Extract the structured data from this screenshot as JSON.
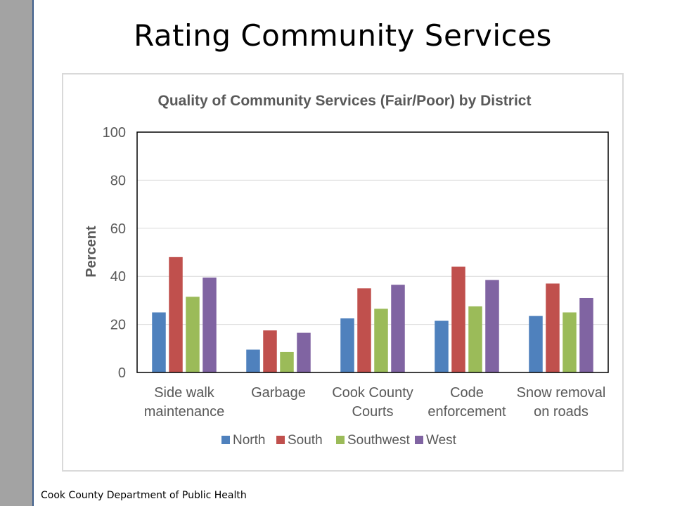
{
  "slide": {
    "title": "Rating Community Services",
    "footer": "Cook County Department of Public Health"
  },
  "colors": {
    "North": "#4f81bd",
    "South": "#c0504d",
    "Southwest": "#9bbb59",
    "West": "#8064a2",
    "left_bar": "#a3a3a3"
  },
  "chart_data": {
    "type": "bar",
    "title": "Quality of Community Services (Fair/Poor) by District",
    "xlabel": "",
    "ylabel": "Percent",
    "ylim": [
      0,
      100
    ],
    "yticks": [
      0,
      20,
      40,
      60,
      80,
      100
    ],
    "grid": true,
    "legend": "bottom",
    "categories": [
      [
        "Side walk",
        "maintenance"
      ],
      [
        "Garbage"
      ],
      [
        "Cook County",
        "Courts"
      ],
      [
        "Code",
        "enforcement"
      ],
      [
        "Snow removal",
        "on roads"
      ]
    ],
    "series": [
      {
        "name": "North",
        "values": [
          25,
          9.5,
          22.5,
          21.5,
          23.5
        ]
      },
      {
        "name": "South",
        "values": [
          48,
          17.5,
          35,
          44,
          37
        ]
      },
      {
        "name": "Southwest",
        "values": [
          31.5,
          8.5,
          26.5,
          27.5,
          25
        ]
      },
      {
        "name": "West",
        "values": [
          39.5,
          16.5,
          36.5,
          38.5,
          31
        ]
      }
    ]
  }
}
